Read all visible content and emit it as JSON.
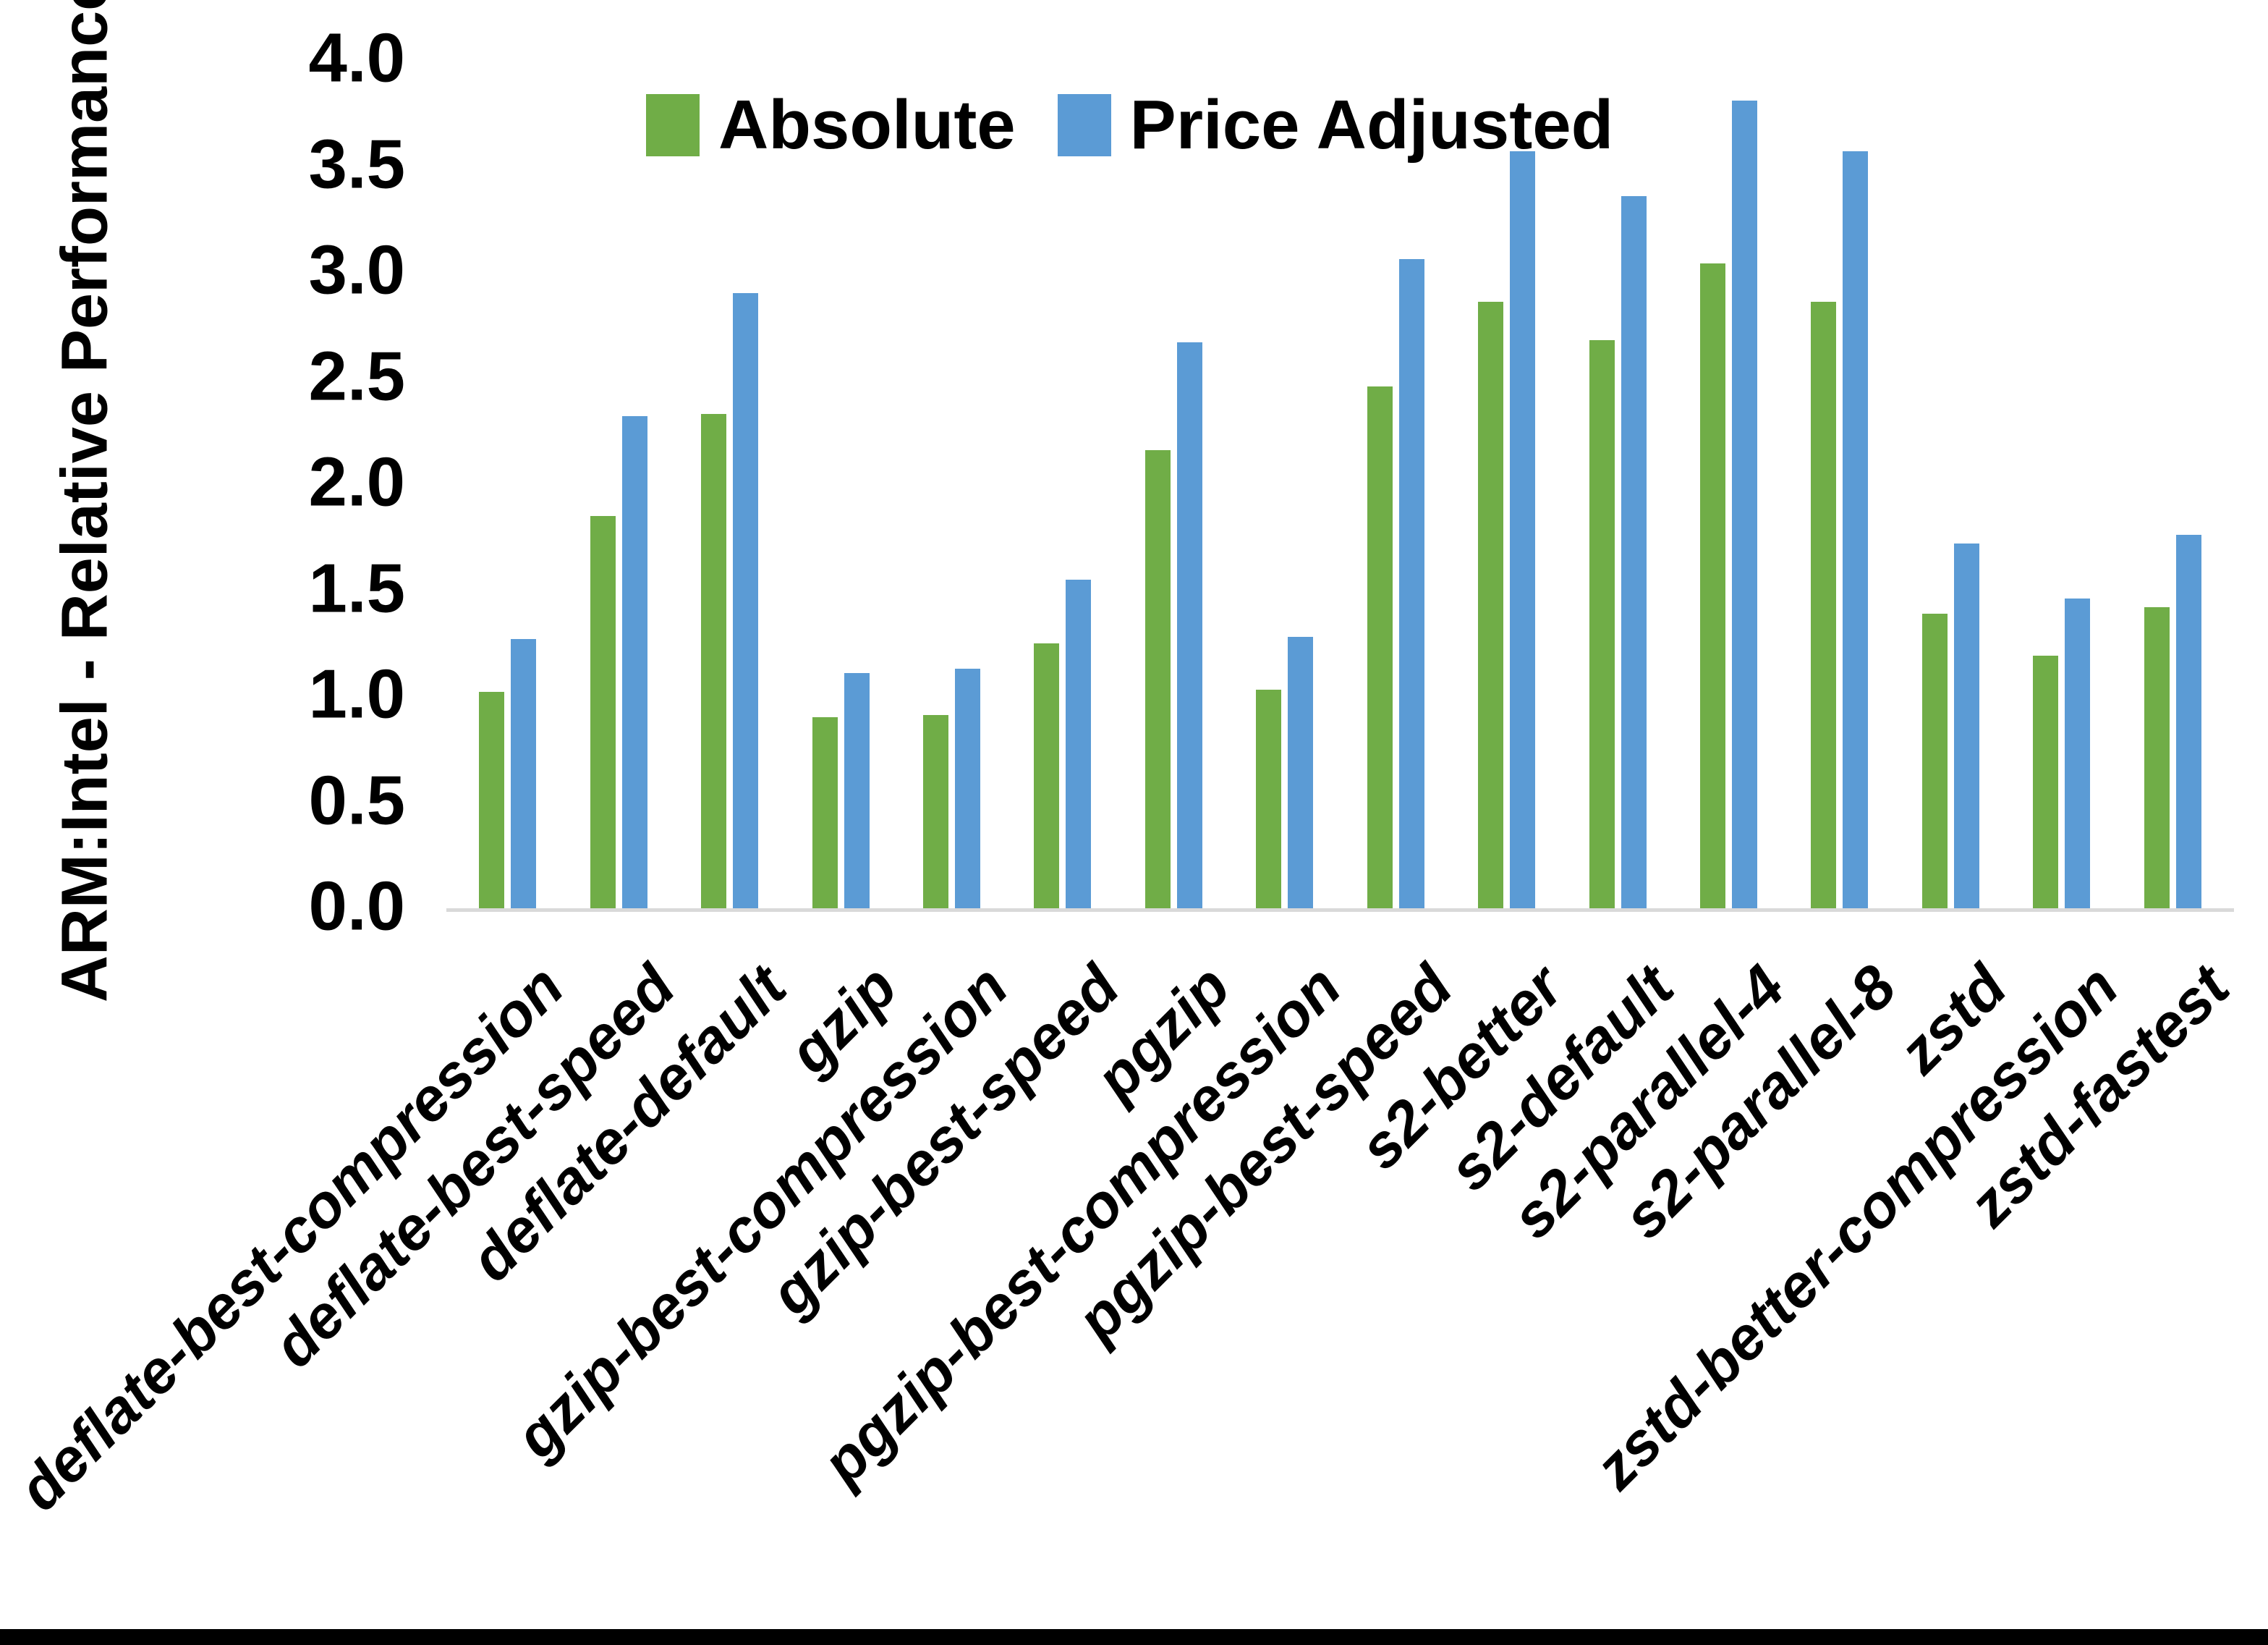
{
  "chart_data": {
    "type": "bar",
    "title": "",
    "xlabel": "",
    "ylabel": "ARM:Intel - Relative Performance",
    "ylim": [
      0.0,
      4.0
    ],
    "ytick_step": 0.5,
    "yticks": [
      "4.0",
      "3.5",
      "3.0",
      "2.5",
      "2.0",
      "1.5",
      "1.0",
      "0.5",
      "0.0"
    ],
    "grid": false,
    "legend_position": "top-center",
    "categories": [
      "deflate-best-compression",
      "deflate-best-speed",
      "deflate-default",
      "gzip",
      "gzip-best-compression",
      "gzip-best-speed",
      "pgzip",
      "pgzip-best-compression",
      "pgzip-best-speed",
      "s2-better",
      "s2-default",
      "s2-parallel-4",
      "s2-parallel-8",
      "zstd",
      "zstd-better-compression",
      "zstd-fastest"
    ],
    "series": [
      {
        "name": "Absolute",
        "color": "#70AD47",
        "values": [
          1.02,
          1.85,
          2.33,
          0.9,
          0.91,
          1.25,
          2.16,
          1.03,
          2.46,
          2.86,
          2.68,
          3.04,
          2.86,
          1.39,
          1.19,
          1.42
        ]
      },
      {
        "name": "Price Adjusted",
        "color": "#5B9BD5",
        "values": [
          1.27,
          2.32,
          2.9,
          1.11,
          1.13,
          1.55,
          2.67,
          1.28,
          3.06,
          3.57,
          3.36,
          3.81,
          3.57,
          1.72,
          1.46,
          1.76
        ]
      }
    ],
    "axis_line_color": "#D9D9D9",
    "text_color": "#000000",
    "background_color": "#FFFFFF"
  }
}
